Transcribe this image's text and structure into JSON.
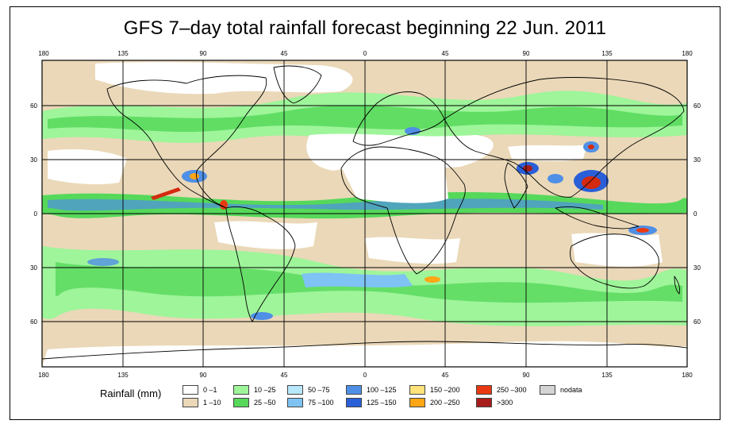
{
  "title": "GFS 7–day total rainfall forecast beginning 22 Jun. 2011",
  "map": {
    "lon_ticks": [
      "180",
      "135",
      "90",
      "45",
      "0",
      "45",
      "90",
      "135",
      "180"
    ],
    "lat_ticks": [
      "60",
      "30",
      "0",
      "30",
      "60"
    ],
    "colors": {
      "ocean_base": "#ead8b8",
      "dry": "#ffffff",
      "light": "#76e07a",
      "moderate": "#3fbf4a",
      "heavy": "#4a90e8",
      "extreme": "#d42a10",
      "coast": "#000000"
    }
  },
  "legend": {
    "title": "Rainfall (mm)",
    "items": [
      {
        "label": "0 –1",
        "color": "#ffffff"
      },
      {
        "label": "1 –10",
        "color": "#ead8b8"
      },
      {
        "label": "10 –25",
        "color": "#9ef59a"
      },
      {
        "label": "25 –50",
        "color": "#56d85a"
      },
      {
        "label": "50 –75",
        "color": "#b8e8fb"
      },
      {
        "label": "75 –100",
        "color": "#7ec3f4"
      },
      {
        "label": "100 –125",
        "color": "#4f8fe6"
      },
      {
        "label": "125 –150",
        "color": "#2a5fd8"
      },
      {
        "label": "150 –200",
        "color": "#ffe27a"
      },
      {
        "label": "200 –250",
        "color": "#ffa614"
      },
      {
        "label": "250 –300",
        "color": "#e83a12"
      },
      {
        "label": ">300",
        "color": "#a81c1c"
      },
      {
        "label": "nodata",
        "color": "#d4d4d4"
      }
    ]
  }
}
